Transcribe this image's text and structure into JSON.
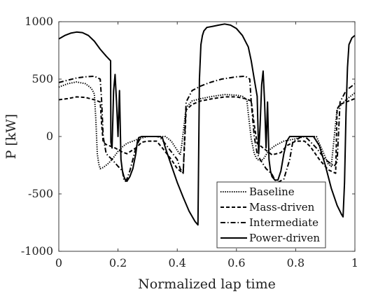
{
  "chart_data": {
    "type": "line",
    "xlabel": "Normalized lap time",
    "ylabel": "P [kW]",
    "xlim": [
      0,
      1
    ],
    "ylim": [
      -1000,
      1000
    ],
    "xticks": [
      0,
      0.2,
      0.4,
      0.6,
      0.8,
      1
    ],
    "xtick_labels": [
      "0",
      "0.2",
      "0.4",
      "0.6",
      "0.8",
      "1"
    ],
    "yticks": [
      -1000,
      -500,
      0,
      500,
      1000
    ],
    "ytick_labels": [
      "-1000",
      "-500",
      "0",
      "500",
      "1000"
    ],
    "grid": false,
    "legend_position": "bottom-right",
    "series": [
      {
        "name": "Baseline",
        "style": "dotted",
        "color": "#000000",
        "x": [
          0,
          0.03,
          0.06,
          0.09,
          0.11,
          0.12,
          0.125,
          0.13,
          0.135,
          0.14,
          0.15,
          0.165,
          0.18,
          0.2,
          0.215,
          0.23,
          0.25,
          0.27,
          0.3,
          0.33,
          0.345,
          0.36,
          0.38,
          0.4,
          0.41,
          0.415,
          0.43,
          0.45,
          0.48,
          0.52,
          0.56,
          0.6,
          0.62,
          0.635,
          0.64,
          0.65,
          0.66,
          0.67,
          0.68,
          0.69,
          0.7,
          0.71,
          0.73,
          0.76,
          0.8,
          0.83,
          0.85,
          0.87,
          0.89,
          0.91,
          0.92,
          0.94,
          0.97,
          1.0
        ],
        "y": [
          430,
          460,
          475,
          460,
          420,
          370,
          150,
          -150,
          -240,
          -280,
          -270,
          -240,
          -200,
          -130,
          -90,
          -60,
          -40,
          -20,
          0,
          0,
          0,
          0,
          -40,
          -120,
          -160,
          -80,
          250,
          310,
          330,
          350,
          365,
          360,
          350,
          320,
          200,
          -20,
          -150,
          -200,
          -210,
          -200,
          -160,
          -120,
          -80,
          -40,
          -20,
          0,
          0,
          0,
          -120,
          -240,
          -260,
          240,
          320,
          380
        ]
      },
      {
        "name": "Mass-driven",
        "style": "dashed",
        "color": "#000000",
        "x": [
          0,
          0.03,
          0.06,
          0.09,
          0.12,
          0.14,
          0.145,
          0.15,
          0.155,
          0.16,
          0.17,
          0.19,
          0.21,
          0.23,
          0.26,
          0.28,
          0.3,
          0.33,
          0.35,
          0.38,
          0.4,
          0.42,
          0.43,
          0.45,
          0.48,
          0.52,
          0.56,
          0.6,
          0.63,
          0.65,
          0.66,
          0.67,
          0.68,
          0.69,
          0.72,
          0.75,
          0.77,
          0.8,
          0.83,
          0.85,
          0.88,
          0.91,
          0.935,
          0.94,
          0.95,
          0.97,
          1.0
        ],
        "y": [
          320,
          330,
          345,
          340,
          320,
          300,
          100,
          -50,
          -60,
          -70,
          -80,
          -100,
          -130,
          -150,
          -100,
          -50,
          -40,
          -40,
          -100,
          -200,
          -280,
          -320,
          230,
          280,
          310,
          330,
          345,
          345,
          330,
          310,
          100,
          -60,
          -80,
          -100,
          -160,
          -140,
          -80,
          -40,
          -40,
          -90,
          -200,
          -290,
          -320,
          240,
          280,
          300,
          330
        ]
      },
      {
        "name": "Intermediate",
        "style": "dashdot",
        "color": "#000000",
        "x": [
          0,
          0.03,
          0.06,
          0.09,
          0.12,
          0.14,
          0.145,
          0.15,
          0.16,
          0.18,
          0.2,
          0.215,
          0.22,
          0.225,
          0.23,
          0.24,
          0.25,
          0.26,
          0.27,
          0.28,
          0.3,
          0.33,
          0.34,
          0.35,
          0.37,
          0.4,
          0.41,
          0.42,
          0.43,
          0.45,
          0.48,
          0.51,
          0.55,
          0.6,
          0.63,
          0.645,
          0.65,
          0.66,
          0.67,
          0.68,
          0.7,
          0.72,
          0.73,
          0.74,
          0.76,
          0.78,
          0.79,
          0.82,
          0.83,
          0.84,
          0.87,
          0.9,
          0.93,
          0.94,
          0.95,
          0.97,
          1.0
        ],
        "y": [
          470,
          490,
          510,
          520,
          525,
          500,
          300,
          0,
          -150,
          -200,
          -260,
          -300,
          -380,
          -390,
          -370,
          -300,
          -200,
          -100,
          -40,
          0,
          0,
          0,
          -5,
          -30,
          -100,
          -200,
          -280,
          -320,
          300,
          400,
          440,
          470,
          500,
          520,
          525,
          500,
          300,
          0,
          -150,
          -200,
          -280,
          -330,
          -380,
          -400,
          -370,
          -200,
          -50,
          0,
          0,
          -20,
          -100,
          -200,
          -260,
          -220,
          300,
          400,
          460
        ]
      },
      {
        "name": "Power-driven",
        "style": "solid",
        "color": "#000000",
        "x": [
          0,
          0.02,
          0.04,
          0.06,
          0.08,
          0.1,
          0.12,
          0.14,
          0.16,
          0.175,
          0.176,
          0.18,
          0.185,
          0.19,
          0.195,
          0.2,
          0.205,
          0.21,
          0.215,
          0.22,
          0.225,
          0.23,
          0.24,
          0.25,
          0.26,
          0.265,
          0.27,
          0.28,
          0.3,
          0.32,
          0.34,
          0.35,
          0.36,
          0.38,
          0.4,
          0.42,
          0.44,
          0.46,
          0.47,
          0.475,
          0.48,
          0.485,
          0.49,
          0.5,
          0.52,
          0.54,
          0.56,
          0.58,
          0.6,
          0.62,
          0.64,
          0.65,
          0.66,
          0.67,
          0.675,
          0.68,
          0.685,
          0.69,
          0.695,
          0.7,
          0.705,
          0.71,
          0.715,
          0.72,
          0.73,
          0.74,
          0.75,
          0.76,
          0.77,
          0.78,
          0.79,
          0.8,
          0.82,
          0.84,
          0.86,
          0.88,
          0.9,
          0.92,
          0.94,
          0.955,
          0.96,
          0.965,
          0.97,
          0.975,
          0.98,
          0.99,
          1.0
        ],
        "y": [
          850,
          880,
          900,
          910,
          905,
          880,
          830,
          760,
          700,
          660,
          -50,
          -100,
          400,
          540,
          300,
          0,
          400,
          -200,
          -300,
          -350,
          -380,
          -390,
          -350,
          -280,
          -150,
          -50,
          -10,
          0,
          0,
          0,
          0,
          -10,
          -100,
          -250,
          -400,
          -530,
          -650,
          -740,
          -770,
          500,
          800,
          880,
          920,
          950,
          960,
          970,
          980,
          970,
          940,
          880,
          780,
          660,
          500,
          350,
          -150,
          100,
          450,
          570,
          300,
          -100,
          300,
          -200,
          -300,
          -350,
          -380,
          -380,
          -300,
          -150,
          -40,
          0,
          0,
          0,
          0,
          0,
          0,
          -80,
          -250,
          -450,
          -600,
          -680,
          -700,
          -400,
          200,
          600,
          800,
          860,
          880
        ]
      }
    ]
  }
}
